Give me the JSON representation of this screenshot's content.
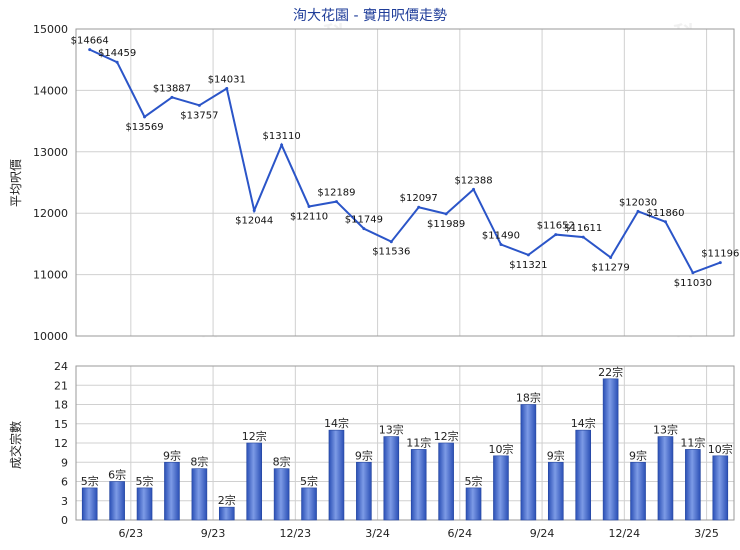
{
  "chart_data": [
    {
      "type": "line",
      "title": "洵大花園 - 實用呎價走勢",
      "ylabel": "平均呎價",
      "ylim": [
        10000,
        15000
      ],
      "yticks": [
        "10000",
        "11000",
        "12000",
        "13000",
        "14000",
        "15000"
      ],
      "grid": true,
      "values": [
        14664,
        14459,
        13569,
        13887,
        13757,
        14031,
        12044,
        13110,
        12110,
        12189,
        11749,
        11536,
        12097,
        11989,
        12388,
        11490,
        11321,
        11652,
        11611,
        11279,
        12030,
        11860,
        11030,
        11196
      ],
      "labels": [
        "$14664",
        "$14459",
        "$13569",
        "$13887",
        "$13757",
        "$14031",
        "$12044",
        "$13110",
        "$12110",
        "$12189",
        "$11749",
        "$11536",
        "$12097",
        "$11989",
        "$12388",
        "$11490",
        "$11321",
        "$11652",
        "$11611",
        "$11279",
        "$12030",
        "$11860",
        "$11030",
        "$11196"
      ]
    },
    {
      "type": "bar",
      "ylabel": "成交宗數",
      "ylim": [
        0,
        24
      ],
      "yticks": [
        "0",
        "3",
        "6",
        "9",
        "12",
        "15",
        "18",
        "21",
        "24"
      ],
      "grid": true,
      "xticks": [
        "6/23",
        "9/23",
        "12/23",
        "3/24",
        "6/24",
        "9/24",
        "12/24",
        "3/25"
      ],
      "values": [
        5,
        6,
        5,
        9,
        8,
        2,
        12,
        8,
        5,
        14,
        9,
        13,
        11,
        12,
        5,
        10,
        18,
        9,
        14,
        22,
        9,
        13,
        11,
        10
      ],
      "labels": [
        "5宗",
        "6宗",
        "5宗",
        "9宗",
        "8宗",
        "2宗",
        "12宗",
        "8宗",
        "5宗",
        "14宗",
        "9宗",
        "13宗",
        "11宗",
        "12宗",
        "5宗",
        "10宗",
        "18宗",
        "9宗",
        "14宗",
        "22宗",
        "9宗",
        "13宗",
        "11宗",
        "10宗"
      ],
      "colors": {
        "bar": "#2f5dc8",
        "line": "#2b55c8"
      }
    }
  ],
  "watermark": "科一"
}
